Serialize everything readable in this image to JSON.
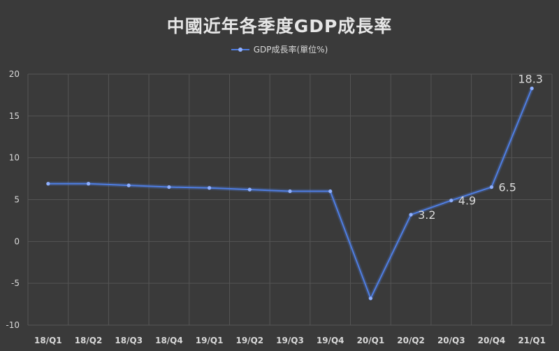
{
  "chart_data": {
    "type": "line",
    "title": "中國近年各季度GDP成長率",
    "xlabel": "",
    "ylabel": "",
    "categories": [
      "18/Q1",
      "18/Q2",
      "18/Q3",
      "18/Q4",
      "19/Q1",
      "19/Q2",
      "19/Q3",
      "19/Q4",
      "20/Q1",
      "20/Q2",
      "20/Q3",
      "20/Q4",
      "21/Q1"
    ],
    "series": [
      {
        "name": "GDP成長率(單位%)",
        "values": [
          6.9,
          6.9,
          6.7,
          6.5,
          6.4,
          6.2,
          6.0,
          6.0,
          -6.8,
          3.2,
          4.9,
          6.5,
          18.3
        ]
      }
    ],
    "data_labels": [
      {
        "index": 9,
        "text": "3.2"
      },
      {
        "index": 10,
        "text": "4.9"
      },
      {
        "index": 11,
        "text": "6.5"
      },
      {
        "index": 12,
        "text": "18.3"
      }
    ],
    "ylim": [
      -10,
      20
    ],
    "yticks": [
      -10,
      -5,
      0,
      5,
      10,
      15,
      20
    ],
    "ytick_labels": [
      "-10",
      "-5",
      "0",
      "5",
      "10",
      "15",
      "20"
    ],
    "grid": true,
    "legend_position": "top-center",
    "line_color": "#4f7ee3",
    "marker_color": "#8fb0ff",
    "background_color": "#3a3a3a",
    "grid_color": "#555555"
  }
}
